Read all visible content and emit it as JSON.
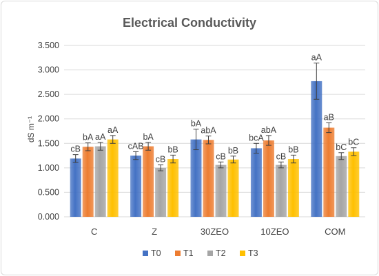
{
  "chart_data": {
    "type": "bar",
    "title": "Electrical Conductivity",
    "ylabel": "dS m⁻¹",
    "xlabel": "",
    "ylim": [
      0,
      3.5
    ],
    "yticks": [
      "0.000",
      "0.500",
      "1.000",
      "1.500",
      "2.000",
      "2.500",
      "3.000",
      "3.500"
    ],
    "grid": true,
    "legend_position": "bottom",
    "categories": [
      "C",
      "Z",
      "30ZEO",
      "10ZEO",
      "COM"
    ],
    "series": [
      {
        "name": "T0",
        "color": "#4472C4",
        "values": [
          1.19,
          1.25,
          1.58,
          1.4,
          2.77
        ],
        "errors": [
          0.08,
          0.08,
          0.21,
          0.1,
          0.37
        ],
        "labels": [
          "cB",
          "cAB",
          "bA",
          "bcA",
          "aA"
        ]
      },
      {
        "name": "T1",
        "color": "#ED7D31",
        "values": [
          1.43,
          1.44,
          1.57,
          1.56,
          1.82
        ],
        "errors": [
          0.08,
          0.08,
          0.08,
          0.1,
          0.1
        ],
        "labels": [
          "bA",
          "bA",
          "abA",
          "abA",
          "aB"
        ]
      },
      {
        "name": "T2",
        "color": "#A5A5A5",
        "values": [
          1.44,
          1.0,
          1.06,
          1.06,
          1.24
        ],
        "errors": [
          0.08,
          0.06,
          0.06,
          0.06,
          0.07
        ],
        "labels": [
          "aA",
          "cB",
          "cB",
          "cB",
          "bC"
        ]
      },
      {
        "name": "T3",
        "color": "#FFC000",
        "values": [
          1.58,
          1.18,
          1.17,
          1.18,
          1.33
        ],
        "errors": [
          0.08,
          0.08,
          0.07,
          0.08,
          0.08
        ],
        "labels": [
          "aA",
          "bB",
          "bB",
          "bB",
          "bC"
        ]
      }
    ]
  }
}
